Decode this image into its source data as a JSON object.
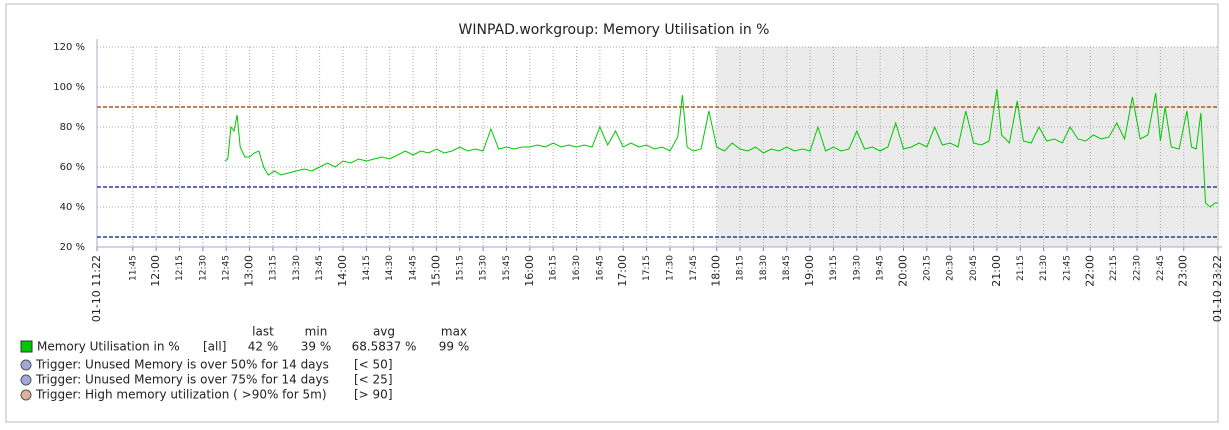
{
  "chart_data": {
    "type": "line",
    "title": "WINPAD.workgroup: Memory Utilisation in %",
    "xlim": [
      "11:22",
      "23:22"
    ],
    "xticks": [
      {
        "value": "11:22",
        "label": "01-10 11:22"
      },
      "11:45",
      "12:00",
      "12:15",
      "12:30",
      "12:45",
      "13:00",
      "13:15",
      "13:30",
      "13:45",
      "14:00",
      "14:15",
      "14:30",
      "14:45",
      "15:00",
      "15:15",
      "15:30",
      "15:45",
      "16:00",
      "16:15",
      "16:30",
      "16:45",
      "17:00",
      "17:15",
      "17:30",
      "17:45",
      "18:00",
      "18:15",
      "18:30",
      "18:45",
      "19:00",
      "19:15",
      "19:30",
      "19:45",
      "20:00",
      "20:15",
      "20:30",
      "20:45",
      "21:00",
      "21:15",
      "21:30",
      "21:45",
      "22:00",
      "22:15",
      "22:30",
      "22:45",
      "23:00",
      {
        "value": "23:22",
        "label": "01-10 23:22"
      }
    ],
    "ylim": [
      20,
      120
    ],
    "yticks": [
      {
        "value": 20,
        "label": "20 %"
      },
      {
        "value": 40,
        "label": "40 %"
      },
      {
        "value": 60,
        "label": "60 %"
      },
      {
        "value": 80,
        "label": "80 %"
      },
      {
        "value": 100,
        "label": "100 %"
      },
      {
        "value": 120,
        "label": "120 %"
      }
    ],
    "grid": true,
    "shaded_from": "18:00",
    "x": [
      "12:44",
      "12:46",
      "12:48",
      "12:50",
      "12:52",
      "12:54",
      "12:57",
      "13:00",
      "13:03",
      "13:06",
      "13:09",
      "13:12",
      "13:16",
      "13:20",
      "13:25",
      "13:30",
      "13:35",
      "13:40",
      "13:45",
      "13:50",
      "13:55",
      "14:00",
      "14:05",
      "14:10",
      "14:15",
      "14:20",
      "14:25",
      "14:30",
      "14:35",
      "14:40",
      "14:45",
      "14:50",
      "14:55",
      "15:00",
      "15:05",
      "15:10",
      "15:15",
      "15:20",
      "15:25",
      "15:30",
      "15:35",
      "15:40",
      "15:45",
      "15:50",
      "15:55",
      "16:00",
      "16:05",
      "16:10",
      "16:15",
      "16:20",
      "16:25",
      "16:30",
      "16:35",
      "16:40",
      "16:45",
      "16:50",
      "16:55",
      "17:00",
      "17:05",
      "17:10",
      "17:15",
      "17:20",
      "17:25",
      "17:30",
      "17:35",
      "17:38",
      "17:41",
      "17:45",
      "17:50",
      "17:55",
      "18:00",
      "18:05",
      "18:10",
      "18:15",
      "18:20",
      "18:25",
      "18:30",
      "18:35",
      "18:40",
      "18:45",
      "18:50",
      "18:55",
      "19:00",
      "19:05",
      "19:10",
      "19:15",
      "19:20",
      "19:25",
      "19:30",
      "19:35",
      "19:40",
      "19:45",
      "19:50",
      "19:55",
      "20:00",
      "20:05",
      "20:10",
      "20:15",
      "20:20",
      "20:25",
      "20:30",
      "20:35",
      "20:40",
      "20:45",
      "20:50",
      "20:55",
      "21:00",
      "21:03",
      "21:08",
      "21:13",
      "21:17",
      "21:22",
      "21:27",
      "21:32",
      "21:37",
      "21:42",
      "21:47",
      "21:52",
      "21:57",
      "22:02",
      "22:07",
      "22:12",
      "22:17",
      "22:22",
      "22:27",
      "22:32",
      "22:37",
      "22:42",
      "22:45",
      "22:48",
      "22:52",
      "22:57",
      "23:02",
      "23:05",
      "23:08",
      "23:11",
      "23:14",
      "23:17",
      "23:20",
      "23:22"
    ],
    "series": [
      {
        "name": "Memory Utilisation in %",
        "color": "#00c800",
        "values": [
          63,
          64,
          80,
          78,
          86,
          70,
          65,
          65,
          67,
          68,
          60,
          56,
          58,
          56,
          57,
          58,
          59,
          58,
          60,
          62,
          60,
          63,
          62,
          64,
          63,
          64,
          65,
          64,
          66,
          68,
          66,
          68,
          67,
          69,
          67,
          68,
          70,
          68,
          69,
          68,
          79,
          69,
          70,
          69,
          70,
          70,
          71,
          70,
          72,
          70,
          71,
          70,
          71,
          70,
          80,
          71,
          78,
          70,
          72,
          70,
          71,
          69,
          70,
          68,
          75,
          96,
          70,
          68,
          69,
          88,
          70,
          68,
          72,
          69,
          68,
          70,
          67,
          69,
          68,
          70,
          68,
          69,
          68,
          80,
          68,
          70,
          68,
          69,
          78,
          69,
          70,
          68,
          70,
          82,
          69,
          70,
          72,
          70,
          80,
          71,
          72,
          70,
          88,
          72,
          71,
          73,
          99,
          76,
          72,
          93,
          73,
          72,
          80,
          73,
          74,
          72,
          80,
          74,
          73,
          76,
          74,
          75,
          82,
          74,
          95,
          74,
          76,
          97,
          73,
          90,
          70,
          69,
          88,
          70,
          69,
          87,
          42,
          40,
          42,
          42
        ]
      }
    ],
    "legend": {
      "headers": [
        "last",
        "min",
        "avg",
        "max"
      ],
      "scope": "[all]",
      "stats": [
        42,
        39,
        68.5837,
        99
      ],
      "value_labels": [
        "42 %",
        "39 %",
        "68.5837 %",
        "99 %"
      ]
    },
    "thresholds": [
      {
        "name": "Trigger: Unused Memory is over 50% for 14 days",
        "condition": "[< 50]",
        "value": 50,
        "color": "#2a3fa8"
      },
      {
        "name": "Trigger: Unused Memory is over 75% for 14 days",
        "condition": "[< 25]",
        "value": 25,
        "color": "#2a3fa8"
      },
      {
        "name": "Trigger: High memory utilization ( >90% for 5m)",
        "condition": "[> 90]",
        "value": 90,
        "color": "#b0561e"
      }
    ]
  }
}
